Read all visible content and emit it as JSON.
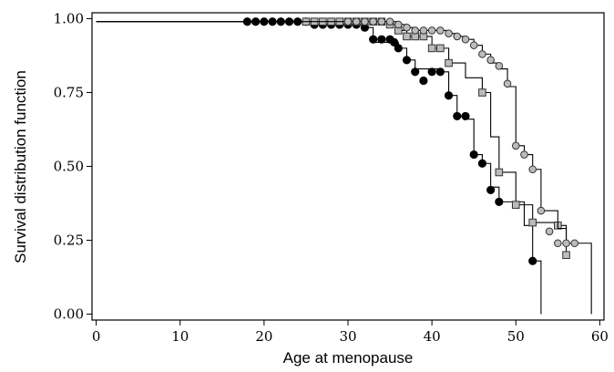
{
  "chart_data": {
    "type": "line",
    "title": "",
    "xlabel": "Age at menopause",
    "ylabel": "Survival distribution function",
    "xlim": [
      -0.5,
      60.5
    ],
    "ylim": [
      -0.02,
      1.02
    ],
    "xticks": [
      0,
      10,
      20,
      30,
      40,
      50,
      60
    ],
    "xtick_labels": [
      "0",
      "10",
      "20",
      "30",
      "40",
      "50",
      "60"
    ],
    "yticks": [
      0.0,
      0.25,
      0.5,
      0.75,
      1.0
    ],
    "ytick_labels": [
      "0.00",
      "0.25",
      "0.50",
      "0.75",
      "1.00"
    ],
    "grid": false,
    "legend": "none",
    "series": [
      {
        "marker": "filled-circle",
        "marker_color": "#000000",
        "steps": [
          [
            0,
            0.99
          ],
          [
            26,
            0.98
          ],
          [
            32,
            0.97
          ],
          [
            33,
            0.92
          ],
          [
            36,
            0.9
          ],
          [
            37,
            0.86
          ],
          [
            38,
            0.83
          ],
          [
            41,
            0.82
          ],
          [
            42,
            0.74
          ],
          [
            43,
            0.67
          ],
          [
            44,
            0.66
          ],
          [
            45,
            0.54
          ],
          [
            46,
            0.51
          ],
          [
            47,
            0.43
          ],
          [
            48,
            0.38
          ],
          [
            51,
            0.3
          ],
          [
            52,
            0.18
          ],
          [
            53,
            0.0
          ]
        ],
        "markers": [
          [
            18,
            0.99
          ],
          [
            19,
            0.99
          ],
          [
            20,
            0.99
          ],
          [
            21,
            0.99
          ],
          [
            22,
            0.99
          ],
          [
            23,
            0.99
          ],
          [
            24,
            0.99
          ],
          [
            25,
            0.99
          ],
          [
            26,
            0.98
          ],
          [
            27,
            0.98
          ],
          [
            28,
            0.98
          ],
          [
            29,
            0.98
          ],
          [
            30,
            0.98
          ],
          [
            31,
            0.98
          ],
          [
            32,
            0.97
          ],
          [
            33,
            0.93
          ],
          [
            34,
            0.93
          ],
          [
            35,
            0.93
          ],
          [
            35.5,
            0.92
          ],
          [
            36,
            0.9
          ],
          [
            37,
            0.86
          ],
          [
            38,
            0.82
          ],
          [
            39,
            0.79
          ],
          [
            40,
            0.82
          ],
          [
            41,
            0.82
          ],
          [
            42,
            0.74
          ],
          [
            43,
            0.67
          ],
          [
            44,
            0.67
          ],
          [
            45,
            0.54
          ],
          [
            46,
            0.51
          ],
          [
            47,
            0.42
          ],
          [
            48,
            0.38
          ],
          [
            52,
            0.18
          ]
        ]
      },
      {
        "marker": "open-square",
        "marker_color": "#bbbbbb",
        "steps": [
          [
            0,
            0.99
          ],
          [
            35,
            0.98
          ],
          [
            36,
            0.96
          ],
          [
            37,
            0.94
          ],
          [
            40,
            0.9
          ],
          [
            42,
            0.85
          ],
          [
            44,
            0.8
          ],
          [
            46,
            0.75
          ],
          [
            47,
            0.6
          ],
          [
            48,
            0.48
          ],
          [
            50,
            0.37
          ],
          [
            52,
            0.31
          ],
          [
            55,
            0.3
          ],
          [
            56,
            0.2
          ]
        ],
        "markers": [
          [
            25,
            0.99
          ],
          [
            26,
            0.99
          ],
          [
            27,
            0.99
          ],
          [
            28,
            0.99
          ],
          [
            29,
            0.99
          ],
          [
            30,
            0.99
          ],
          [
            31,
            0.99
          ],
          [
            32,
            0.99
          ],
          [
            33,
            0.99
          ],
          [
            34,
            0.99
          ],
          [
            35,
            0.98
          ],
          [
            36,
            0.96
          ],
          [
            37,
            0.94
          ],
          [
            38,
            0.94
          ],
          [
            39,
            0.94
          ],
          [
            40,
            0.9
          ],
          [
            41,
            0.9
          ],
          [
            42,
            0.85
          ],
          [
            46,
            0.75
          ],
          [
            48,
            0.48
          ],
          [
            50,
            0.37
          ],
          [
            52,
            0.31
          ],
          [
            55,
            0.3
          ],
          [
            56,
            0.2
          ]
        ]
      },
      {
        "marker": "open-circle",
        "marker_color": "#bbbbbb",
        "steps": [
          [
            0,
            0.99
          ],
          [
            36,
            0.98
          ],
          [
            37,
            0.97
          ],
          [
            38,
            0.96
          ],
          [
            39,
            0.96
          ],
          [
            42,
            0.95
          ],
          [
            43,
            0.94
          ],
          [
            44,
            0.93
          ],
          [
            45,
            0.91
          ],
          [
            46,
            0.88
          ],
          [
            47,
            0.85
          ],
          [
            48,
            0.83
          ],
          [
            49,
            0.77
          ],
          [
            50,
            0.57
          ],
          [
            51,
            0.54
          ],
          [
            52,
            0.49
          ],
          [
            53,
            0.35
          ],
          [
            55,
            0.29
          ],
          [
            56,
            0.24
          ],
          [
            59,
            0.0
          ]
        ],
        "markers": [
          [
            30,
            0.99
          ],
          [
            31,
            0.99
          ],
          [
            32,
            0.99
          ],
          [
            33,
            0.99
          ],
          [
            34,
            0.99
          ],
          [
            35,
            0.99
          ],
          [
            36,
            0.98
          ],
          [
            37,
            0.97
          ],
          [
            38,
            0.96
          ],
          [
            39,
            0.96
          ],
          [
            40,
            0.96
          ],
          [
            41,
            0.96
          ],
          [
            42,
            0.95
          ],
          [
            43,
            0.94
          ],
          [
            44,
            0.93
          ],
          [
            45,
            0.91
          ],
          [
            46,
            0.88
          ],
          [
            47,
            0.86
          ],
          [
            48,
            0.84
          ],
          [
            49,
            0.78
          ],
          [
            50,
            0.57
          ],
          [
            51,
            0.54
          ],
          [
            52,
            0.49
          ],
          [
            53,
            0.35
          ],
          [
            54,
            0.28
          ],
          [
            55,
            0.24
          ],
          [
            56,
            0.24
          ],
          [
            57,
            0.24
          ]
        ]
      }
    ]
  }
}
